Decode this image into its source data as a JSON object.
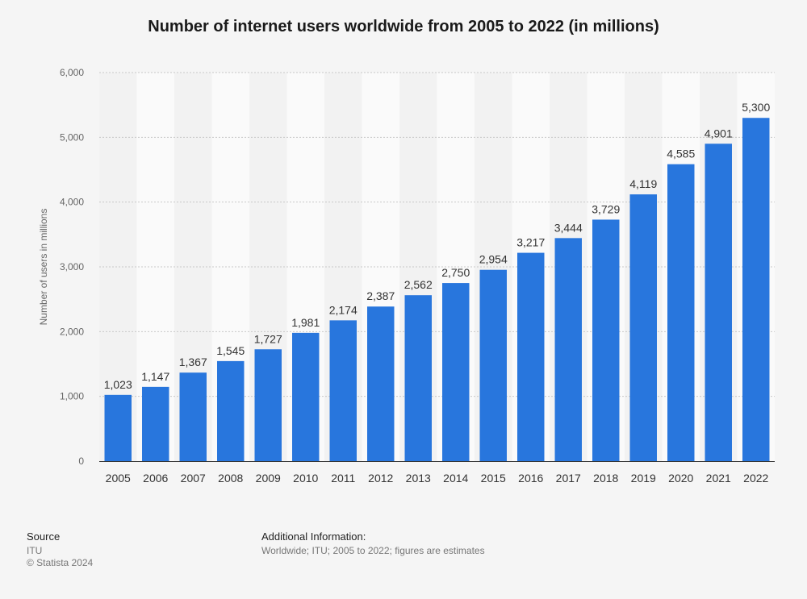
{
  "chart_data": {
    "type": "bar",
    "title": "Number of internet users worldwide from 2005 to 2022 (in millions)",
    "xlabel": "",
    "ylabel": "Number of users in millions",
    "ylim": [
      0,
      6000
    ],
    "yticks": [
      "0",
      "1,000",
      "2,000",
      "3,000",
      "4,000",
      "5,000",
      "6,000"
    ],
    "categories": [
      "2005",
      "2006",
      "2007",
      "2008",
      "2009",
      "2010",
      "2011",
      "2012",
      "2013",
      "2014",
      "2015",
      "2016",
      "2017",
      "2018",
      "2019",
      "2020",
      "2021",
      "2022"
    ],
    "values": [
      1023,
      1147,
      1367,
      1545,
      1727,
      1981,
      2174,
      2387,
      2562,
      2750,
      2954,
      3217,
      3444,
      3729,
      4119,
      4585,
      4901,
      5300
    ],
    "value_labels": [
      "1,023",
      "1,147",
      "1,367",
      "1,545",
      "1,727",
      "1,981",
      "2,174",
      "2,387",
      "2,562",
      "2,750",
      "2,954",
      "3,217",
      "3,444",
      "3,729",
      "4,119",
      "4,585",
      "4,901",
      "5,300"
    ],
    "bar_color": "#2876dd",
    "grid": true,
    "legend": "none"
  },
  "footer": {
    "source_heading": "Source",
    "source_name": "ITU",
    "copyright": "© Statista 2024",
    "additional_heading": "Additional Information:",
    "additional_text": "Worldwide; ITU; 2005 to 2022; figures are estimates"
  }
}
